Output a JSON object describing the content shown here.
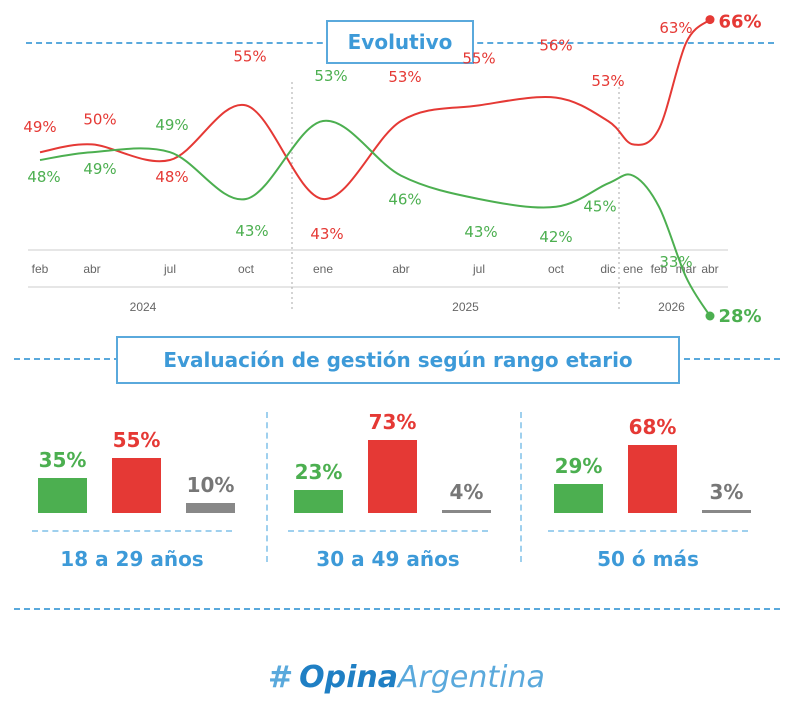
{
  "section1": {
    "title": "Evolutivo"
  },
  "section2": {
    "title": "Evaluación de gestión según rango etario"
  },
  "colors": {
    "positive": "#4caf50",
    "negative": "#e53935",
    "neutral": "#888888",
    "accent": "#3d9ad8"
  },
  "chart_data": [
    {
      "type": "line",
      "x": [
        "feb",
        "abr",
        "jul",
        "oct",
        "ene",
        "abr",
        "jul",
        "oct",
        "dic",
        "ene",
        "feb",
        "mar",
        "abr"
      ],
      "years": [
        {
          "label": "2024",
          "from": 0,
          "to": 3
        },
        {
          "label": "2025",
          "from": 4,
          "to": 8
        },
        {
          "label": "2026",
          "from": 9,
          "to": 12
        }
      ],
      "series": [
        {
          "key": "red",
          "color": "#e53935",
          "points": [
            {
              "x": 0,
              "y": 49,
              "label": "49%"
            },
            {
              "x": 1,
              "y": 50,
              "label": "50%"
            },
            {
              "x": 2,
              "y": 48,
              "label": "48%"
            },
            {
              "x": 3,
              "y": 55,
              "label": "55%"
            },
            {
              "x": 4,
              "y": 43,
              "label": "43%"
            },
            {
              "x": 5,
              "y": 53,
              "label": "53%"
            },
            {
              "x": 6,
              "y": 55,
              "label": "55%"
            },
            {
              "x": 7,
              "y": 56,
              "label": "56%"
            },
            {
              "x": 8,
              "y": 53,
              "label": "53%"
            },
            {
              "x": 9,
              "y": 50,
              "label": ""
            },
            {
              "x": 10,
              "y": 52,
              "label": ""
            },
            {
              "x": 11,
              "y": 63,
              "label": "63%"
            },
            {
              "x": 12,
              "y": 66,
              "label": "66%"
            }
          ]
        },
        {
          "key": "green",
          "color": "#4caf50",
          "points": [
            {
              "x": 0,
              "y": 48,
              "label": "48%"
            },
            {
              "x": 1,
              "y": 49,
              "label": "49%"
            },
            {
              "x": 2,
              "y": 49,
              "label": "49%"
            },
            {
              "x": 3,
              "y": 43,
              "label": "43%"
            },
            {
              "x": 4,
              "y": 53,
              "label": "53%"
            },
            {
              "x": 5,
              "y": 46,
              "label": "46%"
            },
            {
              "x": 6,
              "y": 43,
              "label": "43%"
            },
            {
              "x": 7,
              "y": 42,
              "label": "42%"
            },
            {
              "x": 8,
              "y": 45,
              "label": "45%"
            },
            {
              "x": 9,
              "y": 46,
              "label": ""
            },
            {
              "x": 10,
              "y": 42,
              "label": ""
            },
            {
              "x": 11,
              "y": 33,
              "label": "33%"
            },
            {
              "x": 12,
              "y": 28,
              "label": "28%"
            }
          ]
        }
      ]
    },
    {
      "type": "bar",
      "groups": [
        {
          "label": "18 a 29 años",
          "values": [
            35,
            55,
            10
          ],
          "labels": [
            "35%",
            "55%",
            "10%"
          ]
        },
        {
          "label": "30 a 49 años",
          "values": [
            23,
            73,
            4
          ],
          "labels": [
            "23%",
            "73%",
            "4%"
          ]
        },
        {
          "label": "50 ó más",
          "values": [
            29,
            68,
            3
          ],
          "labels": [
            "29%",
            "68%",
            "3%"
          ]
        }
      ],
      "bar_colors": [
        "#4caf50",
        "#e53935",
        "#888888"
      ]
    }
  ],
  "logo": {
    "hash": "#",
    "part1": "Opina",
    "part2": "Argentina"
  }
}
